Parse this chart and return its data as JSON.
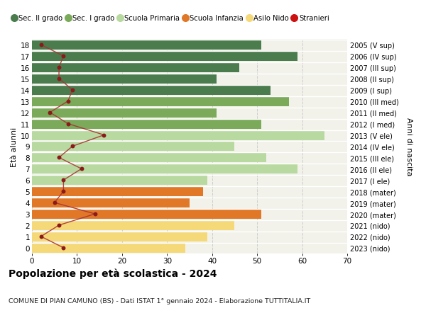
{
  "ages": [
    18,
    17,
    16,
    15,
    14,
    13,
    12,
    11,
    10,
    9,
    8,
    7,
    6,
    5,
    4,
    3,
    2,
    1,
    0
  ],
  "right_labels": [
    "2005 (V sup)",
    "2006 (IV sup)",
    "2007 (III sup)",
    "2008 (II sup)",
    "2009 (I sup)",
    "2010 (III med)",
    "2011 (II med)",
    "2012 (I med)",
    "2013 (V ele)",
    "2014 (IV ele)",
    "2015 (III ele)",
    "2016 (II ele)",
    "2017 (I ele)",
    "2018 (mater)",
    "2019 (mater)",
    "2020 (mater)",
    "2021 (nido)",
    "2022 (nido)",
    "2023 (nido)"
  ],
  "bar_values": [
    51,
    59,
    46,
    41,
    53,
    57,
    41,
    51,
    65,
    45,
    52,
    59,
    39,
    38,
    35,
    51,
    45,
    39,
    34
  ],
  "bar_colors": [
    "#4a7c4e",
    "#4a7c4e",
    "#4a7c4e",
    "#4a7c4e",
    "#4a7c4e",
    "#7aaa5a",
    "#7aaa5a",
    "#7aaa5a",
    "#b8d9a0",
    "#b8d9a0",
    "#b8d9a0",
    "#b8d9a0",
    "#b8d9a0",
    "#e07828",
    "#e07828",
    "#e07828",
    "#f5d878",
    "#f5d878",
    "#f5d878"
  ],
  "stranieri_values": [
    2,
    7,
    6,
    6,
    9,
    8,
    4,
    8,
    16,
    9,
    6,
    11,
    7,
    7,
    5,
    14,
    6,
    2,
    7
  ],
  "legend_labels": [
    "Sec. II grado",
    "Sec. I grado",
    "Scuola Primaria",
    "Scuola Infanzia",
    "Asilo Nido",
    "Stranieri"
  ],
  "legend_colors": [
    "#4a7c4e",
    "#7aaa5a",
    "#b8d9a0",
    "#e07828",
    "#f5d878",
    "#cc1111"
  ],
  "title": "Popolazione per età scolastica - 2024",
  "subtitle": "COMUNE DI PIAN CAMUNO (BS) - Dati ISTAT 1° gennaio 2024 - Elaborazione TUTTITALIA.IT",
  "ylabel_left": "Età alunni",
  "ylabel_right": "Anni di nascita",
  "xlim": [
    0,
    70
  ],
  "xticks": [
    0,
    10,
    20,
    30,
    40,
    50,
    60,
    70
  ],
  "background_color": "#ffffff",
  "plot_bg_color": "#f2f2ea",
  "grid_color": "#cccccc",
  "stranieri_color": "#8b1a1a",
  "stranieri_line_color": "#aa3333"
}
